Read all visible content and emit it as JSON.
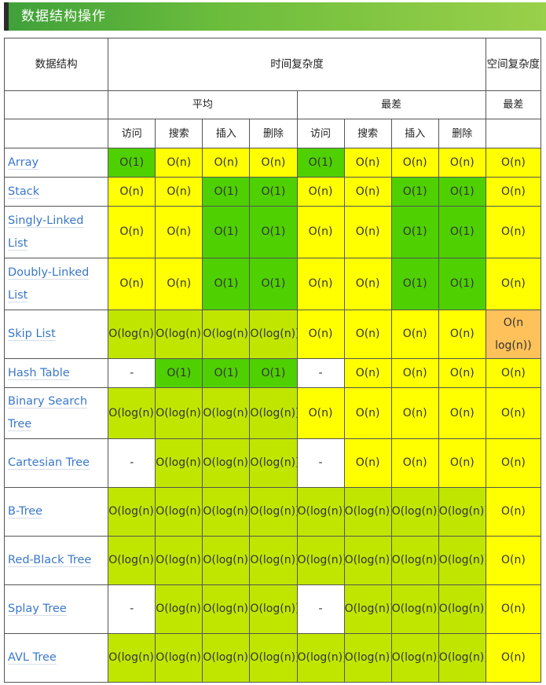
{
  "page": {
    "title": "数据结构操作"
  },
  "header": {
    "structure": "数据结构",
    "time_complexity": "时间复杂度",
    "space_complexity": "空间复杂度",
    "average": "平均",
    "worst": "最差",
    "space_worst": "最差",
    "ops": [
      "访问",
      "搜索",
      "插入",
      "删除",
      "访问",
      "搜索",
      "插入",
      "删除"
    ]
  },
  "colors": {
    "green": "#4fd000",
    "light_green": "#c0e600",
    "yellow": "#ffff00",
    "orange": "#ffc15a",
    "white": "#ffffff",
    "link": "#3a78c8",
    "title_bar": "#6cbd3c"
  },
  "rows": [
    {
      "name": "Array",
      "cells": [
        [
          "O(1)",
          "g"
        ],
        [
          "O(n)",
          "y"
        ],
        [
          "O(n)",
          "y"
        ],
        [
          "O(n)",
          "y"
        ],
        [
          "O(1)",
          "g"
        ],
        [
          "O(n)",
          "y"
        ],
        [
          "O(n)",
          "y"
        ],
        [
          "O(n)",
          "y"
        ],
        [
          "O(n)",
          "y"
        ]
      ]
    },
    {
      "name": "Stack",
      "cells": [
        [
          "O(n)",
          "y"
        ],
        [
          "O(n)",
          "y"
        ],
        [
          "O(1)",
          "g"
        ],
        [
          "O(1)",
          "g"
        ],
        [
          "O(n)",
          "y"
        ],
        [
          "O(n)",
          "y"
        ],
        [
          "O(1)",
          "g"
        ],
        [
          "O(1)",
          "g"
        ],
        [
          "O(n)",
          "y"
        ]
      ]
    },
    {
      "name": "Singly-Linked List",
      "cells": [
        [
          "O(n)",
          "y"
        ],
        [
          "O(n)",
          "y"
        ],
        [
          "O(1)",
          "g"
        ],
        [
          "O(1)",
          "g"
        ],
        [
          "O(n)",
          "y"
        ],
        [
          "O(n)",
          "y"
        ],
        [
          "O(1)",
          "g"
        ],
        [
          "O(1)",
          "g"
        ],
        [
          "O(n)",
          "y"
        ]
      ]
    },
    {
      "name": "Doubly-Linked List",
      "cells": [
        [
          "O(n)",
          "y"
        ],
        [
          "O(n)",
          "y"
        ],
        [
          "O(1)",
          "g"
        ],
        [
          "O(1)",
          "g"
        ],
        [
          "O(n)",
          "y"
        ],
        [
          "O(n)",
          "y"
        ],
        [
          "O(1)",
          "g"
        ],
        [
          "O(1)",
          "g"
        ],
        [
          "O(n)",
          "y"
        ]
      ]
    },
    {
      "name": "Skip List",
      "cells": [
        [
          "O(log(n))",
          "lg"
        ],
        [
          "O(log(n))",
          "lg"
        ],
        [
          "O(log(n))",
          "lg"
        ],
        [
          "O(log(n))",
          "lg"
        ],
        [
          "O(n)",
          "y"
        ],
        [
          "O(n)",
          "y"
        ],
        [
          "O(n)",
          "y"
        ],
        [
          "O(n)",
          "y"
        ],
        [
          "O(n log(n))",
          "o"
        ]
      ]
    },
    {
      "name": "Hash Table",
      "cells": [
        [
          "-",
          "w"
        ],
        [
          "O(1)",
          "g"
        ],
        [
          "O(1)",
          "g"
        ],
        [
          "O(1)",
          "g"
        ],
        [
          "-",
          "w"
        ],
        [
          "O(n)",
          "y"
        ],
        [
          "O(n)",
          "y"
        ],
        [
          "O(n)",
          "y"
        ],
        [
          "O(n)",
          "y"
        ]
      ]
    },
    {
      "name": "Binary Search Tree",
      "cells": [
        [
          "O(log(n))",
          "lg"
        ],
        [
          "O(log(n))",
          "lg"
        ],
        [
          "O(log(n))",
          "lg"
        ],
        [
          "O(log(n))",
          "lg"
        ],
        [
          "O(n)",
          "y"
        ],
        [
          "O(n)",
          "y"
        ],
        [
          "O(n)",
          "y"
        ],
        [
          "O(n)",
          "y"
        ],
        [
          "O(n)",
          "y"
        ]
      ]
    },
    {
      "name": "Cartesian Tree",
      "cells": [
        [
          "-",
          "w"
        ],
        [
          "O(log(n))",
          "lg"
        ],
        [
          "O(log(n))",
          "lg"
        ],
        [
          "O(log(n))",
          "lg"
        ],
        [
          "-",
          "w"
        ],
        [
          "O(n)",
          "y"
        ],
        [
          "O(n)",
          "y"
        ],
        [
          "O(n)",
          "y"
        ],
        [
          "O(n)",
          "y"
        ]
      ]
    },
    {
      "name": "B-Tree",
      "cells": [
        [
          "O(log(n))",
          "lg"
        ],
        [
          "O(log(n))",
          "lg"
        ],
        [
          "O(log(n))",
          "lg"
        ],
        [
          "O(log(n))",
          "lg"
        ],
        [
          "O(log(n))",
          "lg"
        ],
        [
          "O(log(n))",
          "lg"
        ],
        [
          "O(log(n))",
          "lg"
        ],
        [
          "O(log(n))",
          "lg"
        ],
        [
          "O(n)",
          "y"
        ]
      ]
    },
    {
      "name": "Red-Black Tree",
      "cells": [
        [
          "O(log(n))",
          "lg"
        ],
        [
          "O(log(n))",
          "lg"
        ],
        [
          "O(log(n))",
          "lg"
        ],
        [
          "O(log(n))",
          "lg"
        ],
        [
          "O(log(n))",
          "lg"
        ],
        [
          "O(log(n))",
          "lg"
        ],
        [
          "O(log(n))",
          "lg"
        ],
        [
          "O(log(n))",
          "lg"
        ],
        [
          "O(n)",
          "y"
        ]
      ]
    },
    {
      "name": "Splay Tree",
      "cells": [
        [
          "-",
          "w"
        ],
        [
          "O(log(n))",
          "lg"
        ],
        [
          "O(log(n))",
          "lg"
        ],
        [
          "O(log(n))",
          "lg"
        ],
        [
          "-",
          "w"
        ],
        [
          "O(log(n))",
          "lg"
        ],
        [
          "O(log(n))",
          "lg"
        ],
        [
          "O(log(n))",
          "lg"
        ],
        [
          "O(n)",
          "y"
        ]
      ]
    },
    {
      "name": "AVL Tree",
      "cells": [
        [
          "O(log(n))",
          "lg"
        ],
        [
          "O(log(n))",
          "lg"
        ],
        [
          "O(log(n))",
          "lg"
        ],
        [
          "O(log(n))",
          "lg"
        ],
        [
          "O(log(n))",
          "lg"
        ],
        [
          "O(log(n))",
          "lg"
        ],
        [
          "O(log(n))",
          "lg"
        ],
        [
          "O(log(n))",
          "lg"
        ],
        [
          "O(n)",
          "y"
        ]
      ]
    }
  ]
}
